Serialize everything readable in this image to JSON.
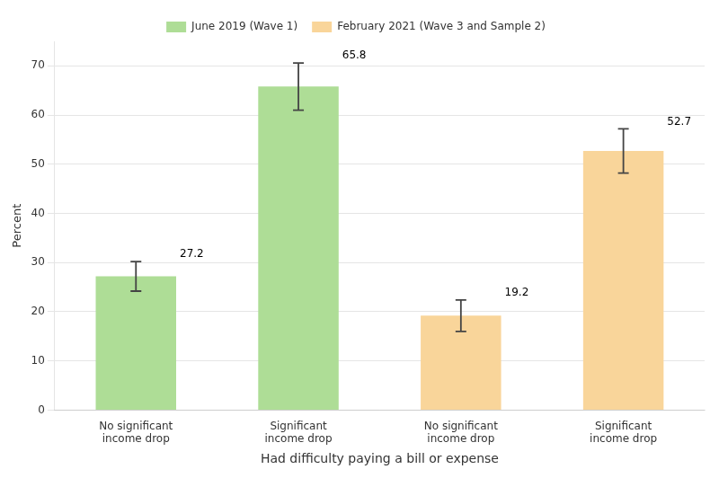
{
  "chart_data": {
    "type": "bar",
    "categories": [
      "No significant\nincome drop",
      "Significant\nincome drop",
      "No significant\nincome drop",
      "Significant\nincome drop"
    ],
    "series": [
      {
        "name": "June 2019 (Wave 1)",
        "color": "#AEDD96",
        "values": [
          27.2,
          65.8,
          null,
          null
        ],
        "errors": [
          3.0,
          4.8,
          null,
          null
        ]
      },
      {
        "name": "February 2021 (Wave 3 and Sample 2)",
        "color": "#F9D59A",
        "values": [
          null,
          null,
          19.2,
          52.7
        ],
        "errors": [
          null,
          null,
          3.2,
          4.5
        ]
      }
    ],
    "x_label": "Had difficulty paying a bill or expense",
    "y_label": "Percent",
    "ylim": [
      0,
      75
    ],
    "yticks": [
      0,
      10,
      20,
      30,
      40,
      50,
      60,
      70
    ],
    "grid": true,
    "legend": "top",
    "data_labels": true
  }
}
